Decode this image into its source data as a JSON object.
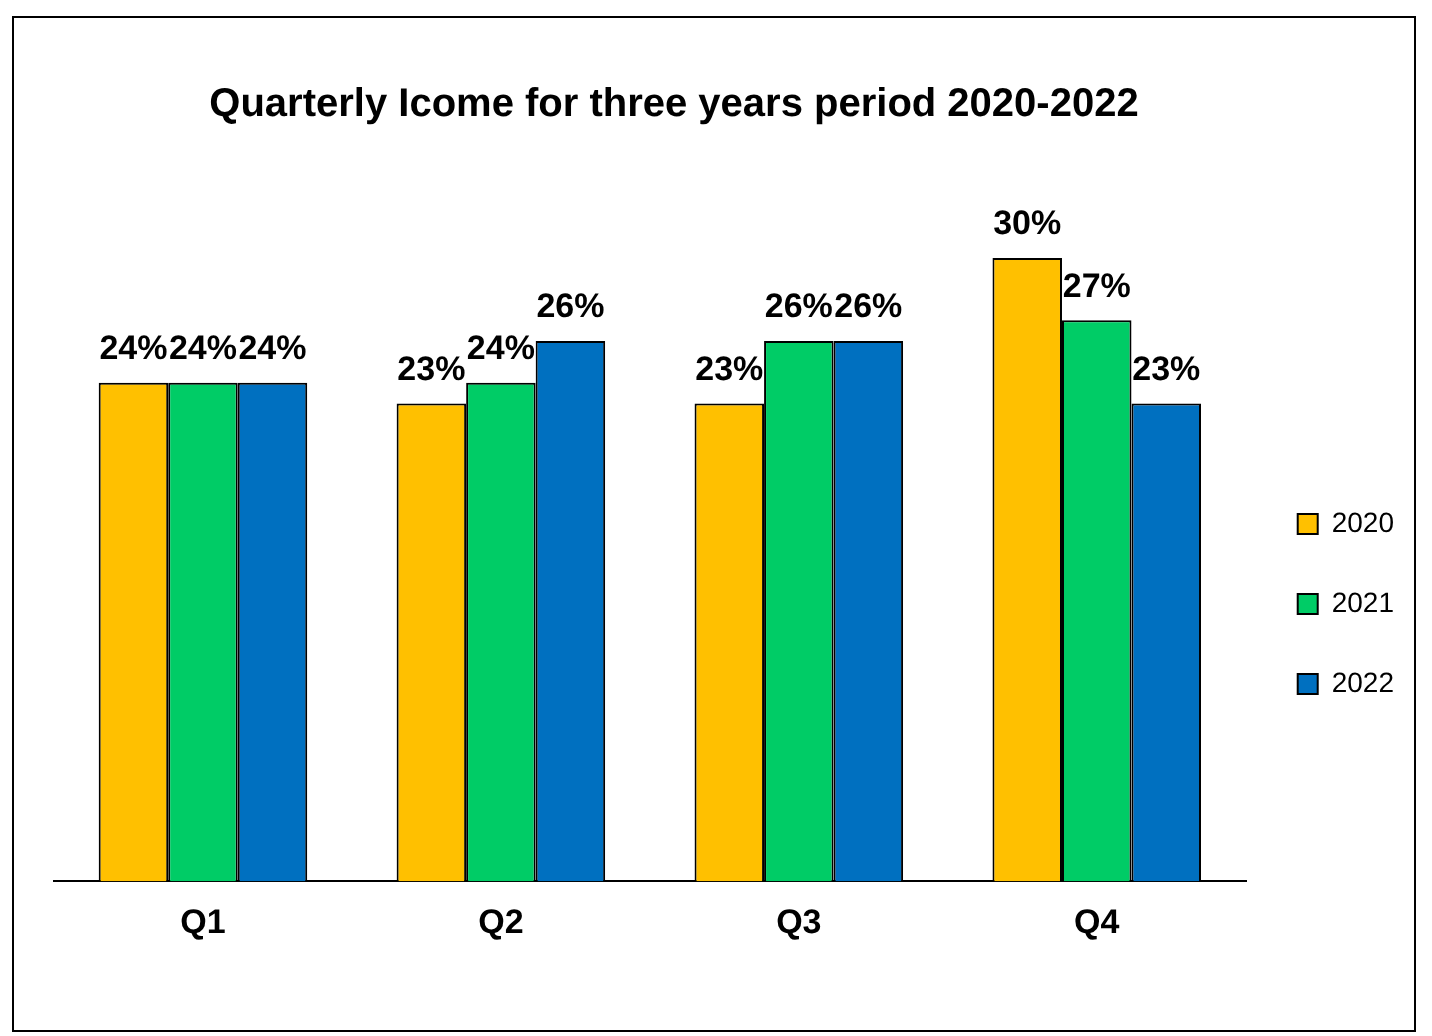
{
  "chart_data": {
    "type": "bar",
    "title": "Quarterly Icome for three years period 2020-2022",
    "categories": [
      "Q1",
      "Q2",
      "Q3",
      "Q4"
    ],
    "legend": "right",
    "grid": false,
    "series": [
      {
        "name": "2020",
        "color": "#ffc000",
        "values": [
          24,
          23,
          23,
          30
        ],
        "value_labels": [
          "24%",
          "23%",
          "23%",
          "30%"
        ]
      },
      {
        "name": "2021",
        "color": "#00cc66",
        "values": [
          24,
          24,
          26,
          27
        ],
        "value_labels": [
          "24%",
          "24%",
          "26%",
          "27%"
        ]
      },
      {
        "name": "2022",
        "color": "#0070c0",
        "values": [
          24,
          26,
          26,
          23
        ],
        "value_labels": [
          "24%",
          "26%",
          "26%",
          "23%"
        ]
      }
    ]
  }
}
